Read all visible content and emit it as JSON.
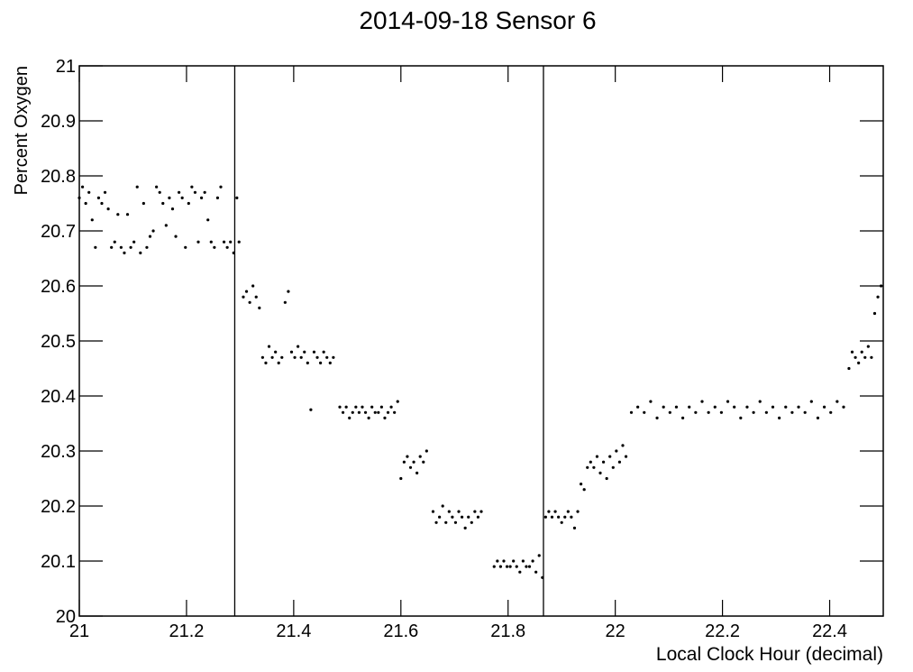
{
  "chart_data": {
    "type": "scatter",
    "title": "2014-09-18  Sensor 6",
    "x_label": "Local Clock Hour (decimal)",
    "y_label": "Percent Oxygen",
    "xlim": [
      21,
      22.5
    ],
    "ylim": [
      20,
      21
    ],
    "xticks": [
      21,
      21.2,
      21.4,
      21.6,
      21.8,
      22,
      22.2,
      22.4
    ],
    "yticks": [
      20,
      20.1,
      20.2,
      20.3,
      20.4,
      20.5,
      20.6,
      20.7,
      20.8,
      20.9,
      21
    ],
    "vlines": [
      21.29,
      21.866
    ],
    "color": "#000000",
    "x": [
      21.0,
      21.006,
      21.012,
      21.018,
      21.024,
      21.03,
      21.036,
      21.042,
      21.048,
      21.054,
      21.06,
      21.066,
      21.072,
      21.078,
      21.084,
      21.09,
      21.096,
      21.102,
      21.108,
      21.114,
      21.12,
      21.126,
      21.132,
      21.138,
      21.144,
      21.15,
      21.156,
      21.162,
      21.168,
      21.174,
      21.18,
      21.186,
      21.192,
      21.198,
      21.204,
      21.21,
      21.216,
      21.222,
      21.228,
      21.234,
      21.24,
      21.246,
      21.252,
      21.258,
      21.264,
      21.27,
      21.276,
      21.282,
      21.288,
      21.294,
      21.298,
      21.306,
      21.312,
      21.318,
      21.324,
      21.33,
      21.336,
      21.342,
      21.348,
      21.354,
      21.36,
      21.366,
      21.372,
      21.378,
      21.384,
      21.39,
      21.396,
      21.402,
      21.408,
      21.414,
      21.42,
      21.426,
      21.432,
      21.438,
      21.444,
      21.45,
      21.456,
      21.462,
      21.468,
      21.474,
      21.486,
      21.492,
      21.498,
      21.504,
      21.51,
      21.516,
      21.522,
      21.528,
      21.534,
      21.54,
      21.546,
      21.552,
      21.558,
      21.564,
      21.57,
      21.576,
      21.582,
      21.588,
      21.594,
      21.6,
      21.606,
      21.612,
      21.618,
      21.624,
      21.63,
      21.636,
      21.642,
      21.648,
      21.66,
      21.666,
      21.672,
      21.678,
      21.684,
      21.69,
      21.696,
      21.702,
      21.708,
      21.714,
      21.72,
      21.726,
      21.732,
      21.738,
      21.744,
      21.75,
      21.774,
      21.78,
      21.786,
      21.792,
      21.798,
      21.804,
      21.81,
      21.816,
      21.822,
      21.828,
      21.834,
      21.84,
      21.846,
      21.852,
      21.858,
      21.864,
      21.87,
      21.876,
      21.882,
      21.888,
      21.894,
      21.9,
      21.906,
      21.912,
      21.918,
      21.924,
      21.93,
      21.936,
      21.942,
      21.948,
      21.954,
      21.96,
      21.966,
      21.972,
      21.978,
      21.984,
      21.99,
      21.996,
      22.002,
      22.008,
      22.014,
      22.02,
      22.03,
      22.042,
      22.054,
      22.066,
      22.078,
      22.09,
      22.102,
      22.114,
      22.126,
      22.138,
      22.15,
      22.162,
      22.174,
      22.186,
      22.198,
      22.21,
      22.222,
      22.234,
      22.246,
      22.258,
      22.27,
      22.282,
      22.294,
      22.306,
      22.318,
      22.33,
      22.342,
      22.354,
      22.366,
      22.378,
      22.39,
      22.402,
      22.414,
      22.426,
      22.436,
      22.442,
      22.448,
      22.454,
      22.46,
      22.466,
      22.472,
      22.478,
      22.484,
      22.49,
      22.496
    ],
    "values": [
      20.76,
      20.78,
      20.75,
      20.77,
      20.72,
      20.67,
      20.76,
      20.75,
      20.77,
      20.74,
      20.67,
      20.68,
      20.73,
      20.67,
      20.66,
      20.73,
      20.67,
      20.68,
      20.78,
      20.66,
      20.75,
      20.67,
      20.69,
      20.7,
      20.78,
      20.77,
      20.75,
      20.71,
      20.76,
      20.74,
      20.69,
      20.77,
      20.76,
      20.67,
      20.75,
      20.78,
      20.77,
      20.68,
      20.76,
      20.77,
      20.72,
      20.68,
      20.67,
      20.76,
      20.78,
      20.68,
      20.67,
      20.68,
      20.66,
      20.76,
      20.68,
      20.58,
      20.59,
      20.57,
      20.6,
      20.58,
      20.56,
      20.47,
      20.46,
      20.49,
      20.47,
      20.48,
      20.46,
      20.47,
      20.57,
      20.59,
      20.48,
      20.47,
      20.49,
      20.47,
      20.48,
      20.46,
      20.375,
      20.48,
      20.47,
      20.46,
      20.48,
      20.47,
      20.46,
      20.47,
      20.38,
      20.37,
      20.38,
      20.36,
      20.37,
      20.38,
      20.37,
      20.38,
      20.37,
      20.36,
      20.38,
      20.37,
      20.37,
      20.38,
      20.36,
      20.37,
      20.38,
      20.37,
      20.39,
      20.25,
      20.28,
      20.29,
      20.27,
      20.28,
      20.26,
      20.29,
      20.28,
      20.3,
      20.19,
      20.17,
      20.18,
      20.2,
      20.17,
      20.19,
      20.18,
      20.17,
      20.19,
      20.18,
      20.16,
      20.18,
      20.17,
      20.19,
      20.18,
      20.19,
      20.09,
      20.1,
      20.09,
      20.1,
      20.09,
      20.09,
      20.1,
      20.09,
      20.08,
      20.1,
      20.09,
      20.09,
      20.1,
      20.08,
      20.11,
      20.07,
      20.18,
      20.19,
      20.18,
      20.19,
      20.18,
      20.17,
      20.18,
      20.19,
      20.18,
      20.16,
      20.19,
      20.24,
      20.23,
      20.27,
      20.28,
      20.27,
      20.29,
      20.26,
      20.28,
      20.25,
      20.29,
      20.27,
      20.3,
      20.28,
      20.31,
      20.29,
      20.37,
      20.38,
      20.37,
      20.39,
      20.36,
      20.38,
      20.37,
      20.38,
      20.36,
      20.38,
      20.37,
      20.39,
      20.37,
      20.38,
      20.37,
      20.39,
      20.38,
      20.36,
      20.38,
      20.37,
      20.39,
      20.37,
      20.38,
      20.36,
      20.38,
      20.37,
      20.38,
      20.37,
      20.39,
      20.36,
      20.38,
      20.37,
      20.39,
      20.38,
      20.45,
      20.48,
      20.47,
      20.46,
      20.48,
      20.47,
      20.49,
      20.47,
      20.55,
      20.58,
      20.6
    ]
  }
}
